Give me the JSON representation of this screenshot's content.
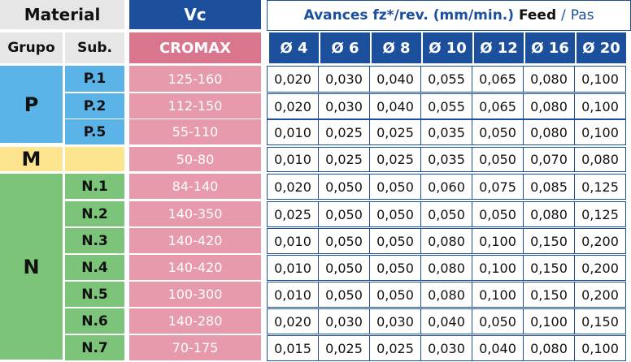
{
  "header": {
    "material": "Material",
    "vc": "Vc",
    "feed_main": "Avances fz*/rev. (mm/min.)",
    "feed_en": "Feed",
    "feed_sep": "/",
    "feed_fr": "Pas",
    "grupo": "Grupo",
    "sub": "Sub.",
    "cromax": "CROMAX",
    "diameters": [
      "Ø 4",
      "Ø 6",
      "Ø 8",
      "Ø 10",
      "Ø 12",
      "Ø 16",
      "Ø 20"
    ]
  },
  "groups": [
    {
      "label": "P",
      "color": "#5ab4e8"
    },
    {
      "label": "M",
      "color": "#fde58f"
    },
    {
      "label": "N",
      "color": "#7cc47a"
    }
  ],
  "rows": [
    {
      "group": "P",
      "sub": "P.1",
      "vc": "125-160",
      "values": [
        "0,020",
        "0,030",
        "0,040",
        "0,055",
        "0,065",
        "0,080",
        "0,100"
      ]
    },
    {
      "group": "P",
      "sub": "P.2",
      "vc": "112-150",
      "values": [
        "0,020",
        "0,030",
        "0,040",
        "0,055",
        "0,065",
        "0,080",
        "0,100"
      ]
    },
    {
      "group": "P",
      "sub": "P.5",
      "vc": "55-110",
      "values": [
        "0,010",
        "0,025",
        "0,025",
        "0,035",
        "0,050",
        "0,080",
        "0,100"
      ]
    },
    {
      "group": "M",
      "sub": "",
      "vc": "50-80",
      "values": [
        "0,010",
        "0,025",
        "0,025",
        "0,035",
        "0,050",
        "0,070",
        "0,080"
      ]
    },
    {
      "group": "N",
      "sub": "N.1",
      "vc": "84-140",
      "values": [
        "0,020",
        "0,050",
        "0,050",
        "0,060",
        "0,075",
        "0,085",
        "0,125"
      ]
    },
    {
      "group": "N",
      "sub": "N.2",
      "vc": "140-350",
      "values": [
        "0,025",
        "0,050",
        "0,050",
        "0,050",
        "0,050",
        "0,080",
        "0,125"
      ]
    },
    {
      "group": "N",
      "sub": "N.3",
      "vc": "140-420",
      "values": [
        "0,010",
        "0,050",
        "0,050",
        "0,080",
        "0,100",
        "0,150",
        "0,200"
      ]
    },
    {
      "group": "N",
      "sub": "N.4",
      "vc": "140-420",
      "values": [
        "0,010",
        "0,050",
        "0,050",
        "0,080",
        "0,100",
        "0,150",
        "0,200"
      ]
    },
    {
      "group": "N",
      "sub": "N.5",
      "vc": "100-300",
      "values": [
        "0,010",
        "0,050",
        "0,050",
        "0,080",
        "0,100",
        "0,150",
        "0,200"
      ]
    },
    {
      "group": "N",
      "sub": "N.6",
      "vc": "140-280",
      "values": [
        "0,020",
        "0,030",
        "0,030",
        "0,040",
        "0,050",
        "0,100",
        "0,150"
      ]
    },
    {
      "group": "N",
      "sub": "N.7",
      "vc": "70-175",
      "values": [
        "0,015",
        "0,025",
        "0,025",
        "0,030",
        "0,040",
        "0,080",
        "0,100"
      ]
    }
  ]
}
